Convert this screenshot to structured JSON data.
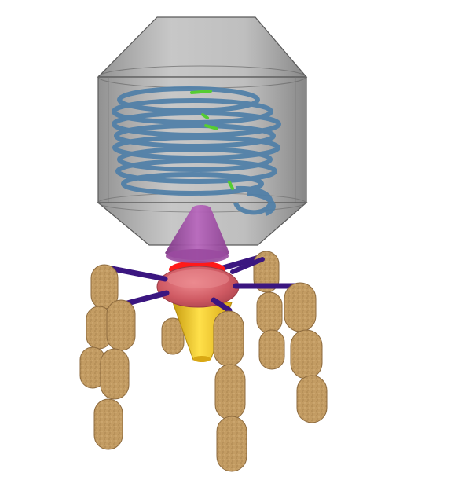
{
  "scene": {
    "subject": "bacteriophage-3d-model",
    "colors": {
      "background": "#ffffff",
      "capsid": "#7f7f7f",
      "capsid_edge": "#5a5a5a",
      "dna": "#4f7fa8",
      "dna_marker": "#55cc33",
      "collar": "#a64dab",
      "connector": "#ff1a1a",
      "baseplate_ring": "#d0555f",
      "tail_tube": "#f5cc20",
      "tail_fiber_proximal": "#3b1680",
      "tail_fiber_segment": "#c19a62",
      "tail_fiber_segment_edge": "#8d6a3d"
    }
  }
}
